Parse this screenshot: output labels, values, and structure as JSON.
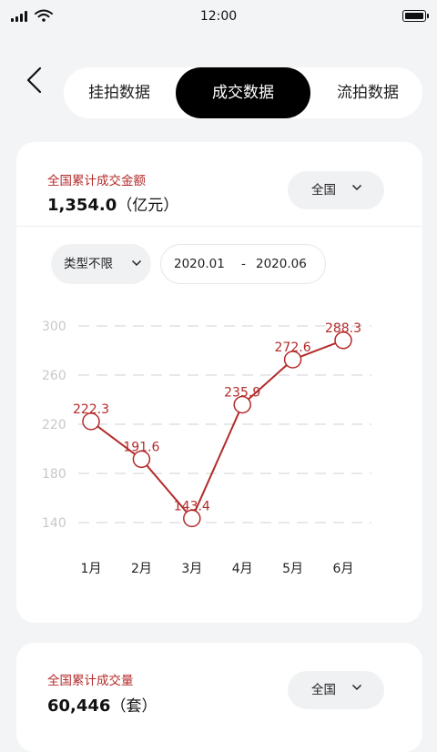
{
  "status_bar": {
    "time": "12:00"
  },
  "tabs": [
    {
      "label": "挂拍数据",
      "active": false
    },
    {
      "label": "成交数据",
      "active": true
    },
    {
      "label": "流拍数据",
      "active": false
    }
  ],
  "card_amount": {
    "metric_label": "全国累计成交金额",
    "metric_value": "1,354.0",
    "metric_unit": "（亿元）",
    "region_selected": "全国",
    "filters": {
      "type_selected": "类型不限",
      "date_start": "2020.01",
      "date_separator": "-",
      "date_end": "2020.06"
    }
  },
  "card_volume": {
    "metric_label": "全国累计成交量",
    "metric_value": "60,446",
    "metric_unit": "（套）",
    "region_selected": "全国"
  },
  "colors": {
    "accent": "#b32a2a",
    "line": "#b32a2a",
    "active_tab_bg": "#000000",
    "background": "#f3f4f6"
  },
  "chart_data": {
    "type": "line",
    "categories": [
      "1月",
      "2月",
      "3月",
      "4月",
      "5月",
      "6月"
    ],
    "series": [
      {
        "values": [
          222.3,
          191.6,
          143.4,
          235.9,
          272.6,
          288.3
        ]
      }
    ],
    "data_labels": [
      "222.3",
      "191.6",
      "143.4",
      "235.9",
      "272.6",
      "288.3"
    ],
    "y_ticks": [
      140,
      180,
      220,
      260,
      300
    ],
    "ylim": [
      140,
      300
    ],
    "grid": "dashed horizontal",
    "title": "",
    "xlabel": "",
    "ylabel": ""
  }
}
